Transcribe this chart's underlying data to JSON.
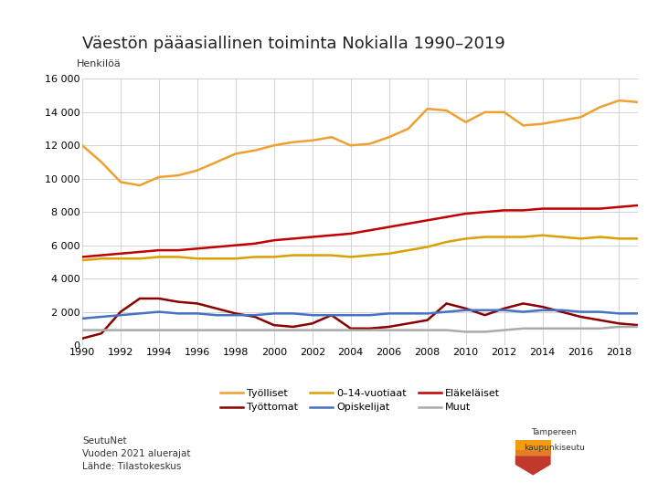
{
  "title": "Väestön pääasiallinen toiminta Nokialla 1990–2019",
  "ylabel": "Henkilöä",
  "background_color": "#ffffff",
  "plot_bg_color": "#ffffff",
  "grid_color": "#cccccc",
  "years": [
    1990,
    1991,
    1992,
    1993,
    1994,
    1995,
    1996,
    1997,
    1998,
    1999,
    2000,
    2001,
    2002,
    2003,
    2004,
    2005,
    2006,
    2007,
    2008,
    2009,
    2010,
    2011,
    2012,
    2013,
    2014,
    2015,
    2016,
    2017,
    2018,
    2019
  ],
  "series": {
    "Työlliset": {
      "color": "#f0a030",
      "values": [
        12000,
        11000,
        9800,
        9600,
        10100,
        10200,
        10500,
        11000,
        11500,
        11700,
        12000,
        12200,
        12300,
        12500,
        12000,
        12100,
        12500,
        13000,
        14200,
        14100,
        13400,
        14000,
        14000,
        13200,
        13300,
        13500,
        13700,
        14300,
        14700,
        14600
      ]
    },
    "Työttomat": {
      "color": "#8b0000",
      "values": [
        400,
        700,
        2000,
        2800,
        2800,
        2600,
        2500,
        2200,
        1900,
        1700,
        1200,
        1100,
        1300,
        1800,
        1000,
        1000,
        1100,
        1300,
        1500,
        2500,
        2200,
        1800,
        2200,
        2500,
        2300,
        2000,
        1700,
        1500,
        1300,
        1200
      ]
    },
    "0–14-vuotiaat": {
      "color": "#daa000",
      "values": [
        5100,
        5200,
        5200,
        5200,
        5300,
        5300,
        5200,
        5200,
        5200,
        5300,
        5300,
        5400,
        5400,
        5400,
        5300,
        5400,
        5500,
        5700,
        5900,
        6200,
        6400,
        6500,
        6500,
        6500,
        6600,
        6500,
        6400,
        6500,
        6400,
        6400
      ]
    },
    "Opiskelijat": {
      "color": "#4472c4",
      "values": [
        1600,
        1700,
        1800,
        1900,
        2000,
        1900,
        1900,
        1800,
        1800,
        1800,
        1900,
        1900,
        1800,
        1800,
        1800,
        1800,
        1900,
        1900,
        1900,
        2000,
        2100,
        2100,
        2100,
        2000,
        2100,
        2100,
        2000,
        2000,
        1900,
        1900
      ]
    },
    "Eläkeläiset": {
      "color": "#c00000",
      "values": [
        5300,
        5400,
        5500,
        5600,
        5700,
        5700,
        5800,
        5900,
        6000,
        6100,
        6300,
        6400,
        6500,
        6600,
        6700,
        6900,
        7100,
        7300,
        7500,
        7700,
        7900,
        8000,
        8100,
        8100,
        8200,
        8200,
        8200,
        8200,
        8300,
        8400
      ]
    },
    "Muut": {
      "color": "#aaaaaa",
      "values": [
        900,
        900,
        900,
        900,
        900,
        900,
        900,
        900,
        900,
        900,
        900,
        900,
        900,
        900,
        900,
        900,
        900,
        900,
        900,
        900,
        800,
        800,
        900,
        1000,
        1000,
        1000,
        1000,
        1000,
        1100,
        1100
      ]
    }
  },
  "ylim": [
    0,
    16000
  ],
  "yticks": [
    0,
    2000,
    4000,
    6000,
    8000,
    10000,
    12000,
    14000,
    16000
  ],
  "xticks": [
    1990,
    1992,
    1994,
    1996,
    1998,
    2000,
    2002,
    2004,
    2006,
    2008,
    2010,
    2012,
    2014,
    2016,
    2018
  ],
  "legend_order": [
    "Työlliset",
    "Työttomat",
    "0–14-vuotiaat",
    "Opiskelijat",
    "Eläkeläiset",
    "Muut"
  ],
  "source_text": "SeutuNet\nVuoden 2021 aluerajat\nLähde: Tilastokeskus",
  "title_fontsize": 13,
  "axis_label_fontsize": 8,
  "tick_fontsize": 8,
  "legend_fontsize": 8
}
